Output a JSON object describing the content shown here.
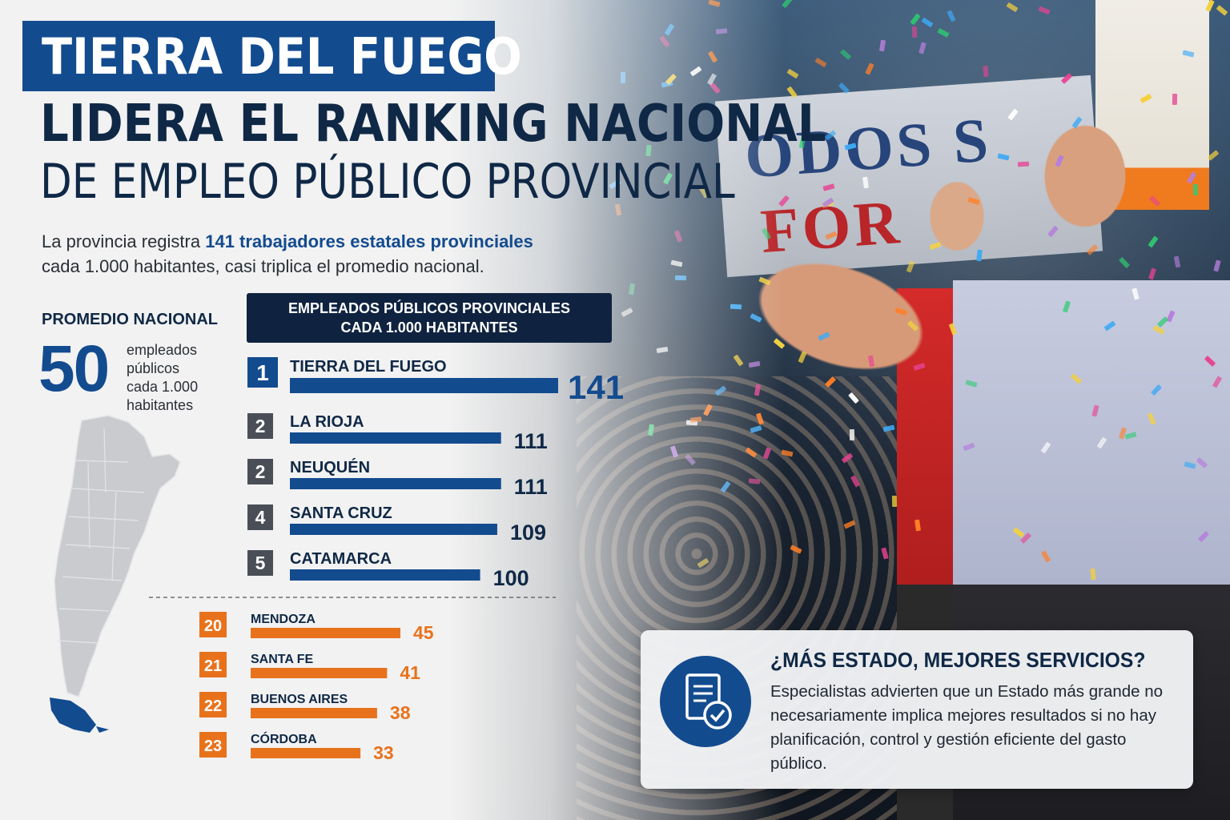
{
  "title": {
    "line1": "TIERRA DEL FUEGO",
    "line2": "LIDERA EL RANKING NACIONAL",
    "line3": "DE EMPLEO PÚBLICO PROVINCIAL"
  },
  "lead": {
    "before": "La provincia registra ",
    "highlight": "141 trabajadores estatales provinciales",
    "after": "cada 1.000 habitantes, casi triplica el promedio nacional."
  },
  "national_average": {
    "label": "PROMEDIO NACIONAL",
    "value": "50",
    "unit_line1": "empleados",
    "unit_line2": "públicos",
    "unit_line3": "cada 1.000",
    "unit_line4": "habitantes"
  },
  "chart_header": {
    "line1": "EMPLEADOS PÚBLICOS PROVINCIALES",
    "line2": "CADA 1.000 HABITANTES"
  },
  "chart_data": {
    "type": "bar",
    "title": "EMPLEADOS PÚBLICOS PROVINCIALES CADA 1.000 HABITANTES",
    "orientation": "horizontal",
    "top": [
      {
        "rank": "1",
        "name": "TIERRA DEL FUEGO",
        "value": 141
      },
      {
        "rank": "2",
        "name": "LA RIOJA",
        "value": 111
      },
      {
        "rank": "2",
        "name": "NEUQUÉN",
        "value": 111
      },
      {
        "rank": "4",
        "name": "SANTA CRUZ",
        "value": 109
      },
      {
        "rank": "5",
        "name": "CATAMARCA",
        "value": 100
      }
    ],
    "bottom": [
      {
        "rank": "20",
        "name": "MENDOZA",
        "value": 45
      },
      {
        "rank": "21",
        "name": "SANTA FE",
        "value": 41
      },
      {
        "rank": "22",
        "name": "BUENOS AIRES",
        "value": 38
      },
      {
        "rank": "23",
        "name": "CÓRDOBA",
        "value": 33
      }
    ],
    "colors": {
      "top": "#134b8f",
      "bottom": "#e8721c",
      "rank_top_first": "#134b8f",
      "rank_top_other": "#4a4f57",
      "rank_bottom": "#e8721c"
    }
  },
  "callout": {
    "title": "¿MÁS ESTADO, MEJORES SERVICIOS?",
    "body": "Especialistas advierten que un Estado más grande no necesariamente implica mejores resultados si no hay planificación, control y gestión eficiente del gasto público.",
    "icon": "document-check-icon"
  },
  "photo": {
    "banner_line1": "ODOS S",
    "banner_line2": "FOR"
  }
}
